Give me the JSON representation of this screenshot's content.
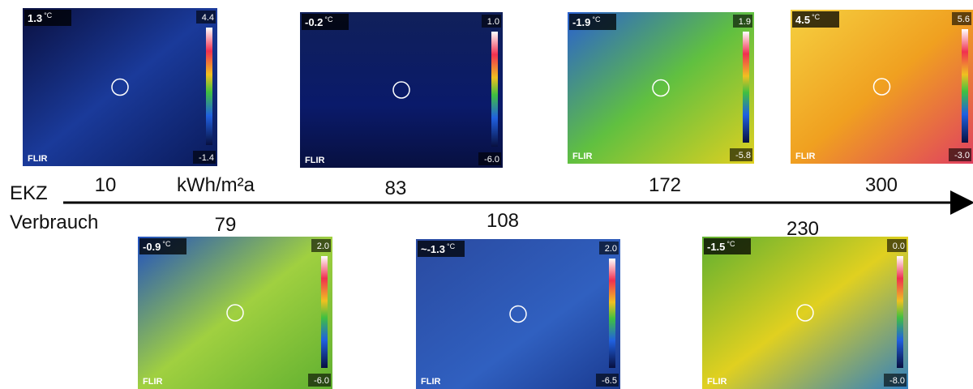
{
  "axis": {
    "label_top": "EKZ",
    "label_bottom": "Verbrauch",
    "unit": "kWh/m²a"
  },
  "logo": "FLIR",
  "images": [
    {
      "temp": "1.3",
      "unit": "°C",
      "scale_max": "4.4",
      "scale_min": "-1.4",
      "value": "10"
    },
    {
      "temp": "-0.2",
      "unit": "°C",
      "scale_max": "1.0",
      "scale_min": "-6.0",
      "value": "83"
    },
    {
      "temp": "-1.9",
      "unit": "°C",
      "scale_max": "1.9",
      "scale_min": "-5.8",
      "value": "172"
    },
    {
      "temp": "4.5",
      "unit": "°C",
      "scale_max": "5.6",
      "scale_min": "-3.0",
      "value": "300"
    },
    {
      "temp": "-0.9",
      "unit": "°C",
      "scale_max": "2.0",
      "scale_min": "-6.0",
      "value": "79"
    },
    {
      "temp": "~-1.3",
      "unit": "°C",
      "scale_max": "2.0",
      "scale_min": "-6.5",
      "value": "108"
    },
    {
      "temp": "-1.5",
      "unit": "°C",
      "scale_max": "0.0",
      "scale_min": "-8.0",
      "value": "230"
    }
  ]
}
